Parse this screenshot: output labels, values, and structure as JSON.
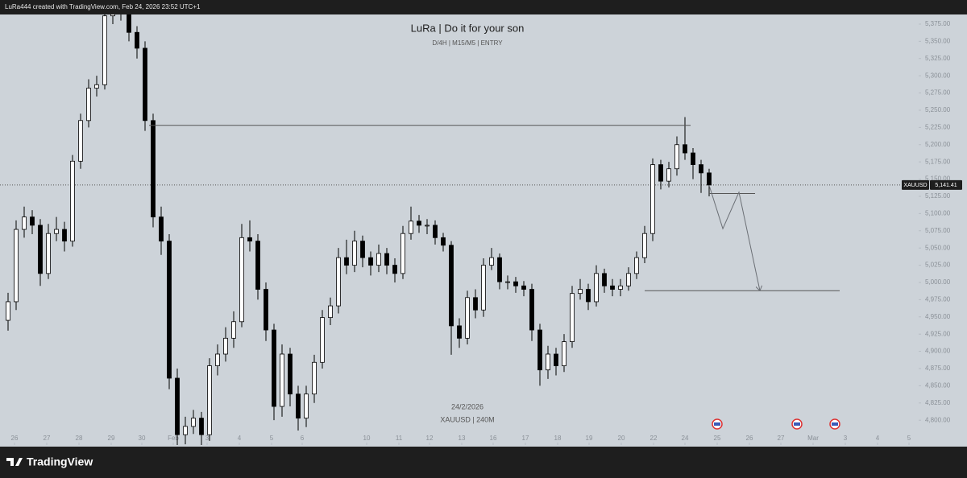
{
  "header": "LuRa444 created with TradingView.com, Feb 24, 2026 23:52 UTC+1",
  "brand": "TradingView",
  "chart_data": {
    "type": "candlestick",
    "title": "LuRa | Do it for your son",
    "subtitle": "D/4H | M15/M5 | ENTRY",
    "watermark_date": "24/2/2026",
    "watermark_symbol": "XAUUSD | 240M",
    "symbol": "XAUUSD",
    "current_price": 5141.41,
    "current_price_label": "5,141.41",
    "up_color": "#ffffff",
    "down_color": "#000000",
    "xlim": [
      0.8,
      114
    ],
    "ylim": [
      4764,
      5410
    ],
    "xticks": [
      {
        "value": 1.8,
        "label": "26"
      },
      {
        "value": 5.8,
        "label": "27"
      },
      {
        "value": 9.8,
        "label": "28"
      },
      {
        "value": 13.8,
        "label": "29"
      },
      {
        "value": 17.6,
        "label": "30"
      },
      {
        "value": 21.5,
        "label": "Feb"
      },
      {
        "value": 25.7,
        "label": "3"
      },
      {
        "value": 29.7,
        "label": "4"
      },
      {
        "value": 33.7,
        "label": "5"
      },
      {
        "value": 37.5,
        "label": "6"
      },
      {
        "value": 45.5,
        "label": "10"
      },
      {
        "value": 49.5,
        "label": "11"
      },
      {
        "value": 53.3,
        "label": "12"
      },
      {
        "value": 57.3,
        "label": "13"
      },
      {
        "value": 61.2,
        "label": "16"
      },
      {
        "value": 65.2,
        "label": "17"
      },
      {
        "value": 69.2,
        "label": "18"
      },
      {
        "value": 73.1,
        "label": "19"
      },
      {
        "value": 77.1,
        "label": "20"
      },
      {
        "value": 81.1,
        "label": "22"
      },
      {
        "value": 85,
        "label": "24"
      },
      {
        "value": 89,
        "label": "25"
      },
      {
        "value": 93,
        "label": "26"
      },
      {
        "value": 96.9,
        "label": "27"
      },
      {
        "value": 100.9,
        "label": "Mar"
      },
      {
        "value": 104.9,
        "label": "3"
      },
      {
        "value": 108.9,
        "label": "4"
      },
      {
        "value": 112.8,
        "label": "5"
      }
    ],
    "yticks": [
      {
        "value": 4800,
        "label": "4,800.00"
      },
      {
        "value": 4825,
        "label": "4,825.00"
      },
      {
        "value": 4850,
        "label": "4,850.00"
      },
      {
        "value": 4875,
        "label": "4,875.00"
      },
      {
        "value": 4900,
        "label": "4,900.00"
      },
      {
        "value": 4925,
        "label": "4,925.00"
      },
      {
        "value": 4950,
        "label": "4,950.00"
      },
      {
        "value": 4975,
        "label": "4,975.00"
      },
      {
        "value": 5000,
        "label": "5,000.00"
      },
      {
        "value": 5025,
        "label": "5,025.00"
      },
      {
        "value": 5050,
        "label": "5,050.00"
      },
      {
        "value": 5075,
        "label": "5,075.00"
      },
      {
        "value": 5100,
        "label": "5,100.00"
      },
      {
        "value": 5125,
        "label": "5,125.00"
      },
      {
        "value": 5150,
        "label": "5,150.00"
      },
      {
        "value": 5175,
        "label": "5,175.00"
      },
      {
        "value": 5200,
        "label": "5,200.00"
      },
      {
        "value": 5225,
        "label": "5,225.00"
      },
      {
        "value": 5250,
        "label": "5,250.00"
      },
      {
        "value": 5275,
        "label": "5,275.00"
      },
      {
        "value": 5300,
        "label": "5,300.00"
      },
      {
        "value": 5325,
        "label": "5,325.00"
      },
      {
        "value": 5350,
        "label": "5,350.00"
      },
      {
        "value": 5375,
        "label": "5,375.00"
      }
    ],
    "x": [
      1,
      2,
      3,
      4,
      5,
      6,
      7,
      8,
      9,
      10,
      11,
      12,
      13,
      14,
      15,
      16,
      17,
      18,
      19,
      20,
      21,
      22,
      23,
      24,
      25,
      26,
      27,
      28,
      29,
      30,
      31,
      32,
      33,
      34,
      35,
      36,
      37,
      38,
      39,
      40,
      41,
      42,
      43,
      44,
      45,
      46,
      47,
      48,
      49,
      50,
      51,
      52,
      53,
      54,
      55,
      56,
      57,
      58,
      59,
      60,
      61,
      62,
      63,
      64,
      65,
      66,
      67,
      68,
      69,
      70,
      71,
      72,
      73,
      74,
      75,
      76,
      77,
      78,
      79,
      80,
      81,
      82,
      83,
      84,
      85,
      86,
      87,
      88
    ],
    "open": [
      4945,
      4972,
      5077,
      5095,
      5083,
      5013,
      5071,
      5077,
      5060,
      5176,
      5235,
      5282,
      5287,
      5387,
      5405,
      5395,
      5363,
      5340,
      5235,
      5095,
      5060,
      4861,
      4779,
      4791,
      4803,
      4779,
      4879,
      4896,
      4919,
      4943,
      5065,
      5060,
      4990,
      4931,
      4820,
      4896,
      4838,
      4803,
      4838,
      4884,
      4949,
      4966,
      5036,
      5025,
      5060,
      5036,
      5025,
      5042,
      5025,
      5013,
      5071,
      5089,
      5083,
      5083,
      5065,
      5054,
      4937,
      4919,
      4978,
      4960,
      5025,
      5036,
      5001,
      5001,
      4995,
      4990,
      4931,
      4873,
      4896,
      4879,
      4914,
      4984,
      4990,
      4972,
      5013,
      4995,
      4990,
      4995,
      5013,
      5036,
      5071,
      5171,
      5147,
      5165,
      5200,
      5188,
      5171,
      5159
    ],
    "high": [
      4985,
      5090,
      5110,
      5105,
      5092,
      5085,
      5095,
      5088,
      5185,
      5245,
      5295,
      5300,
      5400,
      5430,
      5430,
      5420,
      5372,
      5350,
      5245,
      5110,
      5070,
      4875,
      4805,
      4815,
      4812,
      4890,
      4910,
      4935,
      4958,
      5085,
      5090,
      5070,
      5000,
      4940,
      4910,
      4905,
      4850,
      4850,
      4895,
      4960,
      4978,
      5050,
      5062,
      5075,
      5068,
      5045,
      5055,
      5050,
      5035,
      5082,
      5110,
      5098,
      5092,
      5090,
      5072,
      5060,
      4948,
      4988,
      4990,
      5035,
      5050,
      5042,
      5010,
      5008,
      5002,
      4998,
      4940,
      4908,
      4905,
      4925,
      4995,
      5005,
      4998,
      5025,
      5020,
      5005,
      5005,
      5022,
      5045,
      5082,
      5180,
      5178,
      5175,
      5212,
      5240,
      5195,
      5178,
      5165
    ],
    "low": [
      4930,
      4960,
      5065,
      5070,
      4995,
      5005,
      5060,
      5045,
      5052,
      5165,
      5225,
      5270,
      5280,
      5375,
      5380,
      5350,
      5325,
      5220,
      5080,
      5040,
      4845,
      4755,
      4765,
      4780,
      4760,
      4770,
      4865,
      4885,
      4905,
      4935,
      5045,
      4975,
      4915,
      4800,
      4805,
      4820,
      4785,
      4790,
      4825,
      4875,
      4938,
      4955,
      5012,
      5015,
      5022,
      5010,
      5015,
      5012,
      5000,
      5005,
      5062,
      5072,
      5070,
      5055,
      5045,
      4895,
      4905,
      4910,
      4948,
      4950,
      5018,
      4990,
      4990,
      4985,
      4980,
      4915,
      4850,
      4860,
      4865,
      4870,
      4905,
      4975,
      4960,
      4965,
      4985,
      4980,
      4980,
      4988,
      5005,
      5028,
      5060,
      5135,
      5138,
      5155,
      5178,
      5150,
      5130,
      5125
    ],
    "close": [
      4972,
      5077,
      5095,
      5083,
      5013,
      5071,
      5077,
      5060,
      5176,
      5235,
      5282,
      5287,
      5387,
      5405,
      5395,
      5363,
      5340,
      5235,
      5095,
      5060,
      4861,
      4779,
      4791,
      4803,
      4779,
      4879,
      4896,
      4919,
      4943,
      5065,
      5060,
      4990,
      4931,
      4820,
      4896,
      4838,
      4803,
      4838,
      4884,
      4949,
      4966,
      5036,
      5025,
      5060,
      5036,
      5025,
      5042,
      5025,
      5013,
      5071,
      5089,
      5083,
      5083,
      5065,
      5054,
      4937,
      4919,
      4978,
      4960,
      5025,
      5036,
      5001,
      5001,
      4995,
      4990,
      4931,
      4873,
      4896,
      4879,
      4914,
      4984,
      4990,
      4972,
      5013,
      4995,
      4990,
      4995,
      5013,
      5036,
      5071,
      5171,
      5147,
      5165,
      5200,
      5188,
      5171,
      5159,
      5141.41
    ],
    "drawings": [
      {
        "x": [
          18.5,
          85.7
        ],
        "y": [
          5228,
          5228
        ],
        "color": "#555555"
      },
      {
        "x": [
          88,
          93.7
        ],
        "y": [
          5129,
          5129
        ],
        "color": "#555555"
      },
      {
        "x": [
          80,
          104.2
        ],
        "y": [
          4988,
          4988
        ],
        "color": "#555555"
      },
      {
        "x": [
          88,
          89.7,
          91.7,
          94.3
        ],
        "y": [
          5141,
          5078,
          5131,
          4988
        ],
        "color": "#6b6f75",
        "arrow": true
      }
    ]
  }
}
